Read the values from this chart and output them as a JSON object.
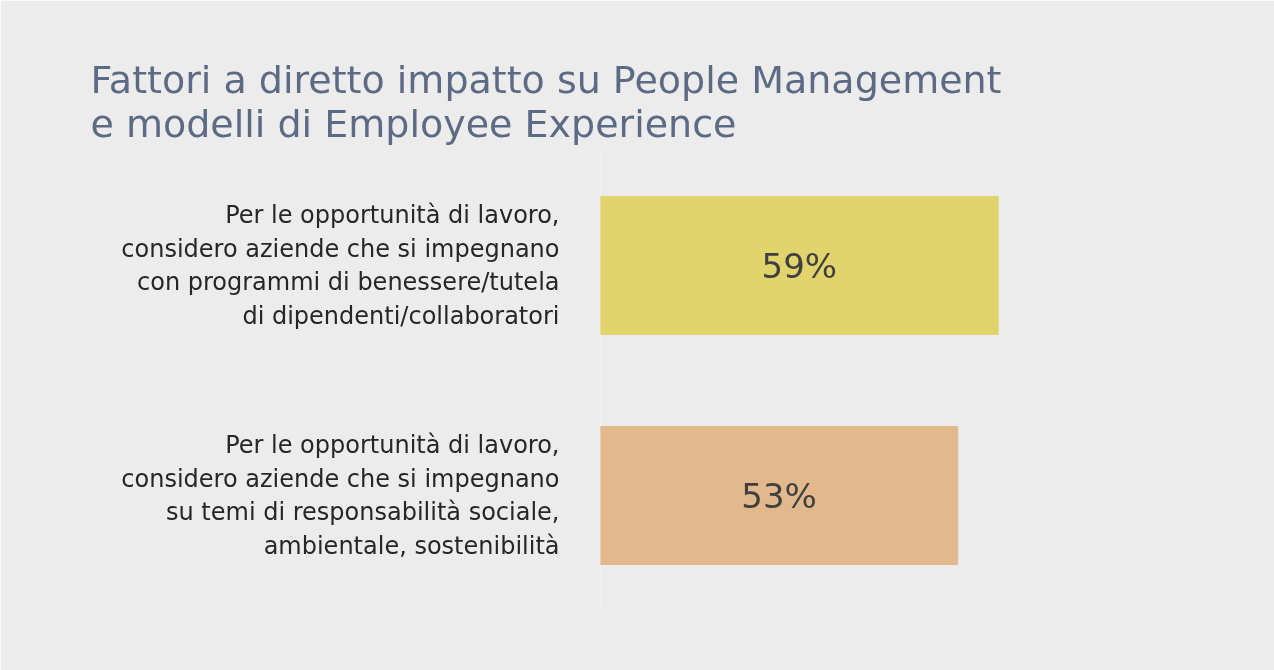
{
  "chart_data": {
    "type": "bar",
    "orientation": "horizontal",
    "title": "Fattori a diretto impatto su People Management e modelli di Employee Experience",
    "categories": [
      "Per le opportunità di lavoro, considero aziende che si impegnano con programmi di benessere/tutela di dipendenti/collaboratori",
      "Per le opportunità di lavoro, considero aziende che si impegnano su temi di responsabilità sociale, ambientale, sostenibilità"
    ],
    "values": [
      59,
      53
    ],
    "value_labels": [
      "59%",
      "53%"
    ],
    "colors": [
      "#e2d46c",
      "#e2b88c"
    ],
    "xlim": [
      0,
      100
    ],
    "tick_labels": "y",
    "grid": false
  }
}
